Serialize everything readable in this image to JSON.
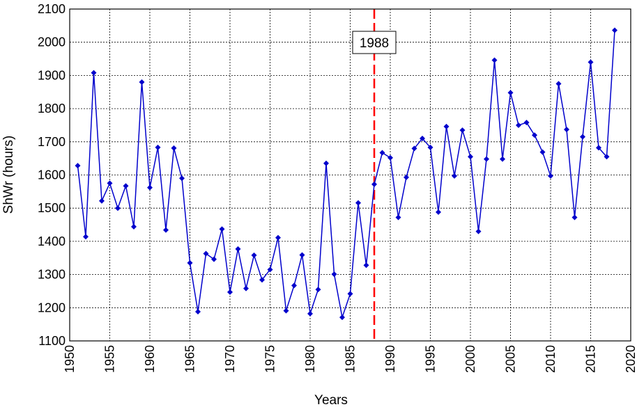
{
  "chart_data": {
    "type": "line",
    "xlabel": "Years",
    "ylabel": "ShWr (hours)",
    "xlim": [
      1950,
      2020
    ],
    "ylim": [
      1100,
      2100
    ],
    "xticks": [
      "1950",
      "1955",
      "1960",
      "1965",
      "1970",
      "1975",
      "1980",
      "1985",
      "1990",
      "1995",
      "2000",
      "2005",
      "2010",
      "2015",
      "2020"
    ],
    "yticks": [
      "1100",
      "1200",
      "1300",
      "1400",
      "1500",
      "1600",
      "1700",
      "1800",
      "1900",
      "2000",
      "2100"
    ],
    "grid": true,
    "line_color": "#0000cc",
    "marker": "diamond",
    "series": [
      {
        "x": [
          1951,
          1952,
          1953,
          1954,
          1955,
          1956,
          1957,
          1958,
          1959,
          1960,
          1961,
          1962,
          1963,
          1964,
          1965,
          1966,
          1967,
          1968,
          1969,
          1970,
          1971,
          1972,
          1973,
          1974,
          1975,
          1976,
          1977,
          1978,
          1979,
          1980,
          1981,
          1982,
          1983,
          1984,
          1985,
          1986,
          1987,
          1988,
          1989,
          1990,
          1991,
          1992,
          1993,
          1994,
          1995,
          1996,
          1997,
          1998,
          1999,
          2000,
          2001,
          2002,
          2003,
          2004,
          2005,
          2006,
          2007,
          2008,
          2009,
          2010,
          2011,
          2012,
          2013,
          2014,
          2015,
          2016,
          2017,
          2018
        ],
        "values": [
          1628,
          1414,
          1908,
          1522,
          1575,
          1500,
          1567,
          1444,
          1880,
          1562,
          1683,
          1434,
          1681,
          1590,
          1335,
          1188,
          1363,
          1346,
          1437,
          1247,
          1377,
          1258,
          1358,
          1284,
          1315,
          1411,
          1191,
          1267,
          1359,
          1182,
          1255,
          1635,
          1301,
          1171,
          1242,
          1516,
          1328,
          1572,
          1667,
          1652,
          1472,
          1593,
          1680,
          1710,
          1683,
          1488,
          1746,
          1597,
          1735,
          1655,
          1430,
          1648,
          1946,
          1648,
          1848,
          1750,
          1758,
          1720,
          1669,
          1597,
          1875,
          1737,
          1472,
          1715,
          1940,
          1682,
          1655,
          2036
        ]
      }
    ],
    "annotations": [
      {
        "type": "vline",
        "x": 1988,
        "label": "1988",
        "color": "#ff0000",
        "style": "dashed"
      }
    ]
  }
}
